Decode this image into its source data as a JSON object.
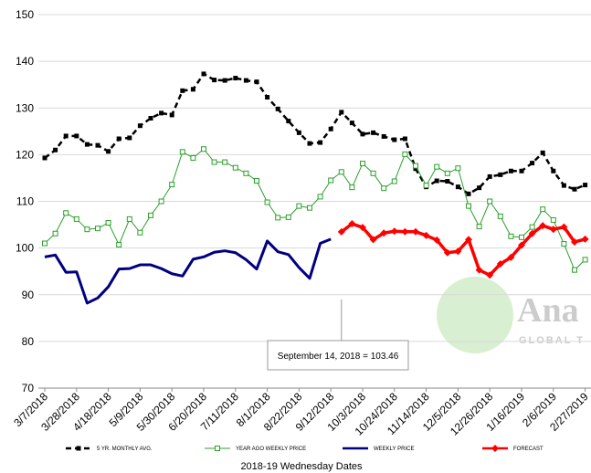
{
  "chart_data": {
    "type": "line",
    "x_label": "2018-19 Wednesday Dates",
    "categories": [
      "3/7/2018",
      null,
      null,
      "3/28/2018",
      null,
      null,
      "4/18/2018",
      null,
      null,
      "5/9/2018",
      null,
      null,
      "5/30/2018",
      null,
      null,
      "6/20/2018",
      null,
      null,
      "7/11/2018",
      null,
      null,
      "8/1/2018",
      null,
      null,
      "8/22/2018",
      null,
      null,
      "9/12/2018",
      null,
      null,
      "10/3/2018",
      null,
      null,
      "10/24/2018",
      null,
      null,
      "11/14/2018",
      null,
      null,
      "12/5/2018",
      null,
      null,
      "12/26/2018",
      null,
      null,
      "1/16/2019",
      null,
      null,
      "2/6/2019",
      null,
      null,
      "2/27/2019"
    ],
    "series": [
      {
        "name": "5 YR. MONTHLY AVG.",
        "color": "#000000",
        "style": "dashed-square",
        "values": [
          119.3,
          121,
          124,
          124,
          122.2,
          122,
          120.7,
          123.4,
          123.6,
          126.2,
          127.8,
          128.9,
          128.5,
          133.7,
          134,
          137.3,
          136,
          135.9,
          136.4,
          135.9,
          135.6,
          132.3,
          129.8,
          127.2,
          124.7,
          122.4,
          122.6,
          125.5,
          129.1,
          126.8,
          124.4,
          124.7,
          123.9,
          123.2,
          123.4,
          117,
          113.1,
          114.4,
          114.3,
          113.1,
          111.6,
          112.9,
          115.3,
          115.7,
          116.5,
          116.5,
          118.2,
          120.4,
          116.5,
          113.4,
          112.6,
          113.5
        ]
      },
      {
        "name": "YEAR AGO WEEKLY PRICE",
        "color": "#2ca02c",
        "style": "hollow-square",
        "values": [
          101,
          103.1,
          107.5,
          106.2,
          104,
          104.2,
          105.4,
          100.7,
          106.2,
          103.3,
          107,
          110,
          113.6,
          120.6,
          119.3,
          121.2,
          118.4,
          118.4,
          117.2,
          116,
          114.4,
          109.8,
          106.5,
          106.6,
          109,
          108.6,
          111,
          114.5,
          116.3,
          113,
          118.1,
          116,
          112.8,
          114.3,
          120.1,
          117.6,
          113.4,
          117.4,
          116,
          117.1,
          109,
          104.6,
          110,
          106.8,
          102.5,
          102.3,
          104.5,
          108.3,
          106,
          100.9,
          95.3,
          97.5
        ]
      },
      {
        "name": "WEEKLY PRICE",
        "color": "#000080",
        "style": "thick",
        "values": [
          98.1,
          98.5,
          94.8,
          94.9,
          88.2,
          89.3,
          91.7,
          95.5,
          95.6,
          96.4,
          96.4,
          95.6,
          94.5,
          94,
          97.6,
          98.1,
          99.1,
          99.4,
          99,
          97.5,
          95.5,
          101.5,
          99.2,
          98.6,
          95.8,
          93.5,
          101,
          101.9,
          null,
          null,
          null,
          null,
          null,
          null,
          null,
          null,
          null,
          null,
          null,
          null,
          null,
          null,
          null,
          null,
          null,
          null,
          null,
          null,
          null,
          null,
          null,
          null
        ]
      },
      {
        "name": "FORECAST",
        "color": "#ff0000",
        "style": "diamond",
        "values": [
          null,
          null,
          null,
          null,
          null,
          null,
          null,
          null,
          null,
          null,
          null,
          null,
          null,
          null,
          null,
          null,
          null,
          null,
          null,
          null,
          null,
          null,
          null,
          null,
          null,
          null,
          null,
          null,
          103.46,
          105.2,
          104.4,
          101.8,
          103.2,
          103.6,
          103.5,
          103.5,
          102.7,
          101.7,
          99,
          99.3,
          101.8,
          95.3,
          94.2,
          96.6,
          98,
          100.6,
          103.1,
          104.8,
          104,
          104.5,
          101.3,
          101.9
        ]
      }
    ],
    "ylim": [
      70,
      150
    ],
    "yticks": [
      70,
      80,
      90,
      100,
      110,
      120,
      130,
      140,
      150
    ],
    "grid": true,
    "legend": "bottom",
    "annotation": {
      "text": "September 14, 2018 = 103.46",
      "index": 28
    },
    "watermark": [
      "Ana",
      "GLOBAL T"
    ]
  }
}
